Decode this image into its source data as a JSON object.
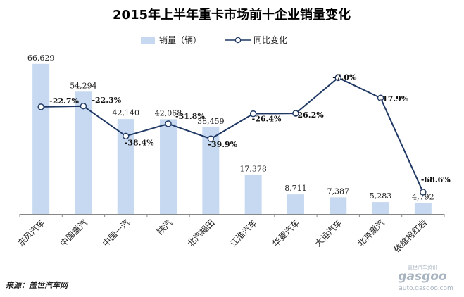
{
  "chart_data": {
    "type": "bar",
    "title": "2015年上半年重卡市场前十企业销量变化",
    "categories": [
      "东风汽车",
      "中国重汽",
      "中国一汽",
      "陕汽",
      "北汽福田",
      "江淮汽车",
      "华菱汽车",
      "大运汽车",
      "北奔重汽",
      "依维柯红岩"
    ],
    "series": [
      {
        "name": "销量（辆）",
        "type": "bar",
        "values": [
          66629,
          54294,
          42140,
          42068,
          38459,
          17378,
          8711,
          7387,
          5283,
          4792
        ],
        "labels": [
          "66,629",
          "54,294",
          "42,140",
          "42,068",
          "38,459",
          "17,378",
          "8,711",
          "7,387",
          "5,283",
          "4,792"
        ],
        "color": "#c6d9f1"
      },
      {
        "name": "同比变化",
        "type": "line",
        "values": [
          -22.7,
          -22.3,
          -38.4,
          -31.8,
          -39.9,
          -26.4,
          -26.2,
          -7.0,
          -17.9,
          -68.6
        ],
        "labels": [
          "-22.7%",
          "-22.3%",
          "-38.4%",
          "-31.8%",
          "-39.9%",
          "-26.4%",
          "-26.2%",
          "-7.0%",
          "-17.9%",
          "-68.6%"
        ],
        "color": "#1f3864"
      }
    ],
    "ylim_bar": [
      0,
      70000
    ],
    "ylim_line": [
      -80,
      0
    ],
    "grid": false,
    "legend_position": "top"
  },
  "footer": {
    "source": "来源：盖世汽车网"
  },
  "watermark": {
    "brand": "gasgoo",
    "cn": "盖世汽车资讯",
    "url": "auto.gasgoo.com"
  },
  "colors": {
    "bar": "#c6d9f1",
    "line": "#1f3864",
    "axis": "#888888"
  }
}
